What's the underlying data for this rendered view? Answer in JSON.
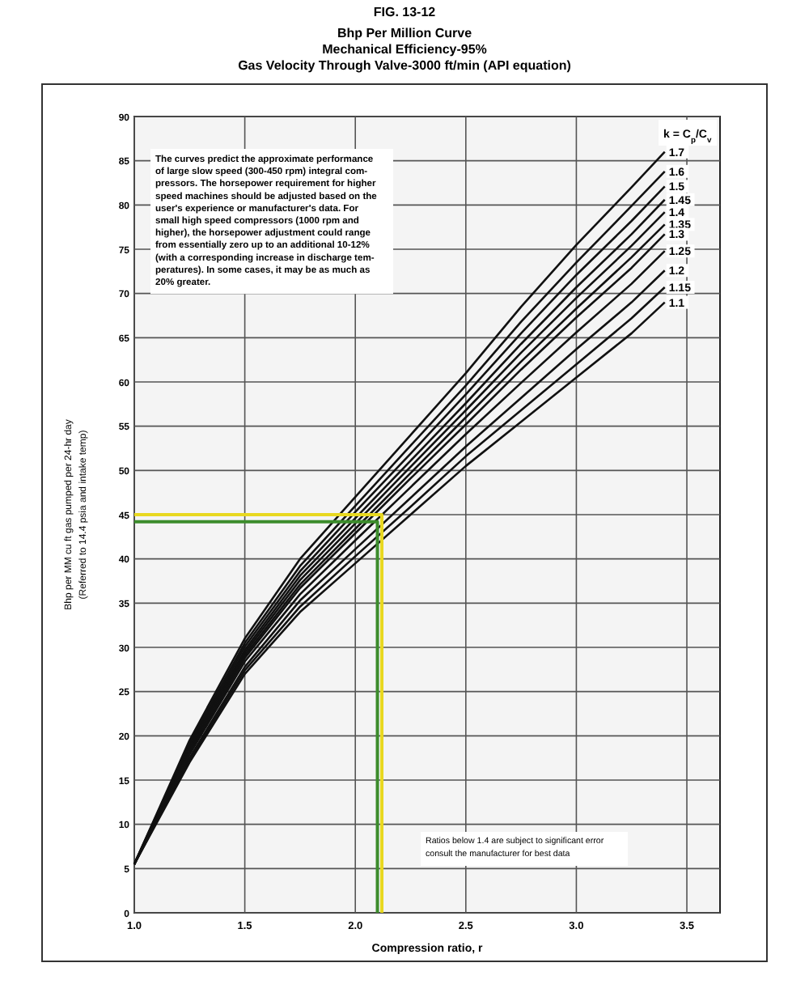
{
  "chart_data": {
    "type": "line",
    "title": "FIG. 13-12",
    "subtitle": "Bhp Per Million Curve\nMechanical Efficiency-95%\nGas Velocity Through Valve-3000 ft/min (API equation)",
    "xlabel": "Compression ratio, r",
    "ylabel": "Bhp per MM cu ft gas pumped per 24-hr day\n(Referred to 14.4 psia and intake temp)",
    "legend_title": "k = C$_{p}$/C$_{v}$",
    "x": [
      1.0,
      1.25,
      1.5,
      1.75,
      2.0,
      2.25,
      2.5,
      2.75,
      3.0,
      3.25,
      3.4
    ],
    "xlim": [
      1.0,
      3.65
    ],
    "ylim": [
      0,
      90
    ],
    "xticks": [
      {
        "value": 1,
        "label": "1.0"
      },
      1.5,
      {
        "value": 2,
        "label": "2.0"
      },
      2.5,
      {
        "value": 3,
        "label": "3.0"
      },
      3.5
    ],
    "yticks": [
      0,
      5,
      10,
      15,
      20,
      25,
      30,
      35,
      40,
      45,
      50,
      55,
      60,
      65,
      70,
      75,
      80,
      85,
      90
    ],
    "grid": true,
    "marker": "none",
    "line_style": "solid",
    "series": [
      {
        "name": "1.7",
        "color": "#111111",
        "values": [
          5.5,
          19.5,
          31,
          40,
          47,
          54,
          61,
          68.5,
          75.5,
          82,
          86
        ]
      },
      {
        "name": "1.6",
        "color": "#111111",
        "values": [
          5.5,
          19.2,
          30.5,
          39.2,
          46.0,
          52.8,
          59.6,
          66.8,
          73.5,
          79.9,
          83.8
        ]
      },
      {
        "name": "1.5",
        "color": "#111111",
        "values": [
          5.5,
          18.9,
          30.1,
          38.6,
          45.3,
          51.9,
          58.6,
          65.5,
          72.1,
          78.2,
          82.1
        ]
      },
      {
        "name": "1.45",
        "color": "#111111",
        "values": [
          5.5,
          18.7,
          29.7,
          38.1,
          44.6,
          51.1,
          57.6,
          64.3,
          70.7,
          76.7,
          80.6
        ]
      },
      {
        "name": "1.4",
        "color": "#111111",
        "values": [
          5.5,
          18.5,
          29.4,
          37.6,
          44.0,
          50.4,
          56.8,
          63.3,
          69.5,
          75.4,
          79.2
        ]
      },
      {
        "name": "1.35",
        "color": "#111111",
        "values": [
          5.5,
          18.3,
          29.1,
          37.1,
          43.4,
          49.7,
          56.0,
          62.3,
          68.3,
          74.1,
          77.8
        ]
      },
      {
        "name": "1.3",
        "color": "#111111",
        "values": [
          5.5,
          18.1,
          28.8,
          36.7,
          42.9,
          49.1,
          55.2,
          61.4,
          67.3,
          72.9,
          76.7
        ]
      },
      {
        "name": "1.25",
        "color": "#111111",
        "values": [
          5.5,
          17.9,
          28.4,
          36.0,
          42.1,
          48.1,
          54.1,
          59.9,
          65.6,
          71.1,
          74.8
        ]
      },
      {
        "name": "1.2",
        "color": "#111111",
        "values": [
          5.5,
          17.5,
          27.8,
          35.3,
          41.1,
          46.9,
          52.7,
          58.2,
          63.7,
          69.0,
          72.6
        ]
      },
      {
        "name": "1.15",
        "color": "#111111",
        "values": [
          5.5,
          17.3,
          27.4,
          34.6,
          40.3,
          45.9,
          51.6,
          56.8,
          62.0,
          67.2,
          70.7
        ]
      },
      {
        "name": "1.1",
        "color": "#111111",
        "values": [
          5.5,
          17,
          27,
          34,
          39.5,
          45,
          50.5,
          55.5,
          60.5,
          65.5,
          69
        ]
      },
      {
        "color": "#3c8c2c",
        "x": [
          1.0,
          2.1,
          2.1
        ],
        "values": [
          44.2,
          44.2,
          0
        ]
      },
      {
        "color": "#e8d820",
        "x": [
          1.0,
          2.12,
          2.12
        ],
        "values": [
          45,
          45,
          0
        ]
      }
    ],
    "annotations": [
      "The curves predict the approximate performance\nof large slow speed (300-450 rpm) integral com-\npressors. The horsepower requirement for higher\nspeed machines should be adjusted based on the\nuser's experience or manufacturer's data. For\nsmall high speed compressors (1000 rpm and\nhigher), the horsepower adjustment could range\nfrom essentially zero up to an additional 10-12%\n(with a corresponding increase in discharge tem-\nperatures). In some cases, it may be as much as\n20% greater.",
      "Ratios below 1.4 are subject to significant error\nconsult the manufacturer for best data"
    ]
  }
}
